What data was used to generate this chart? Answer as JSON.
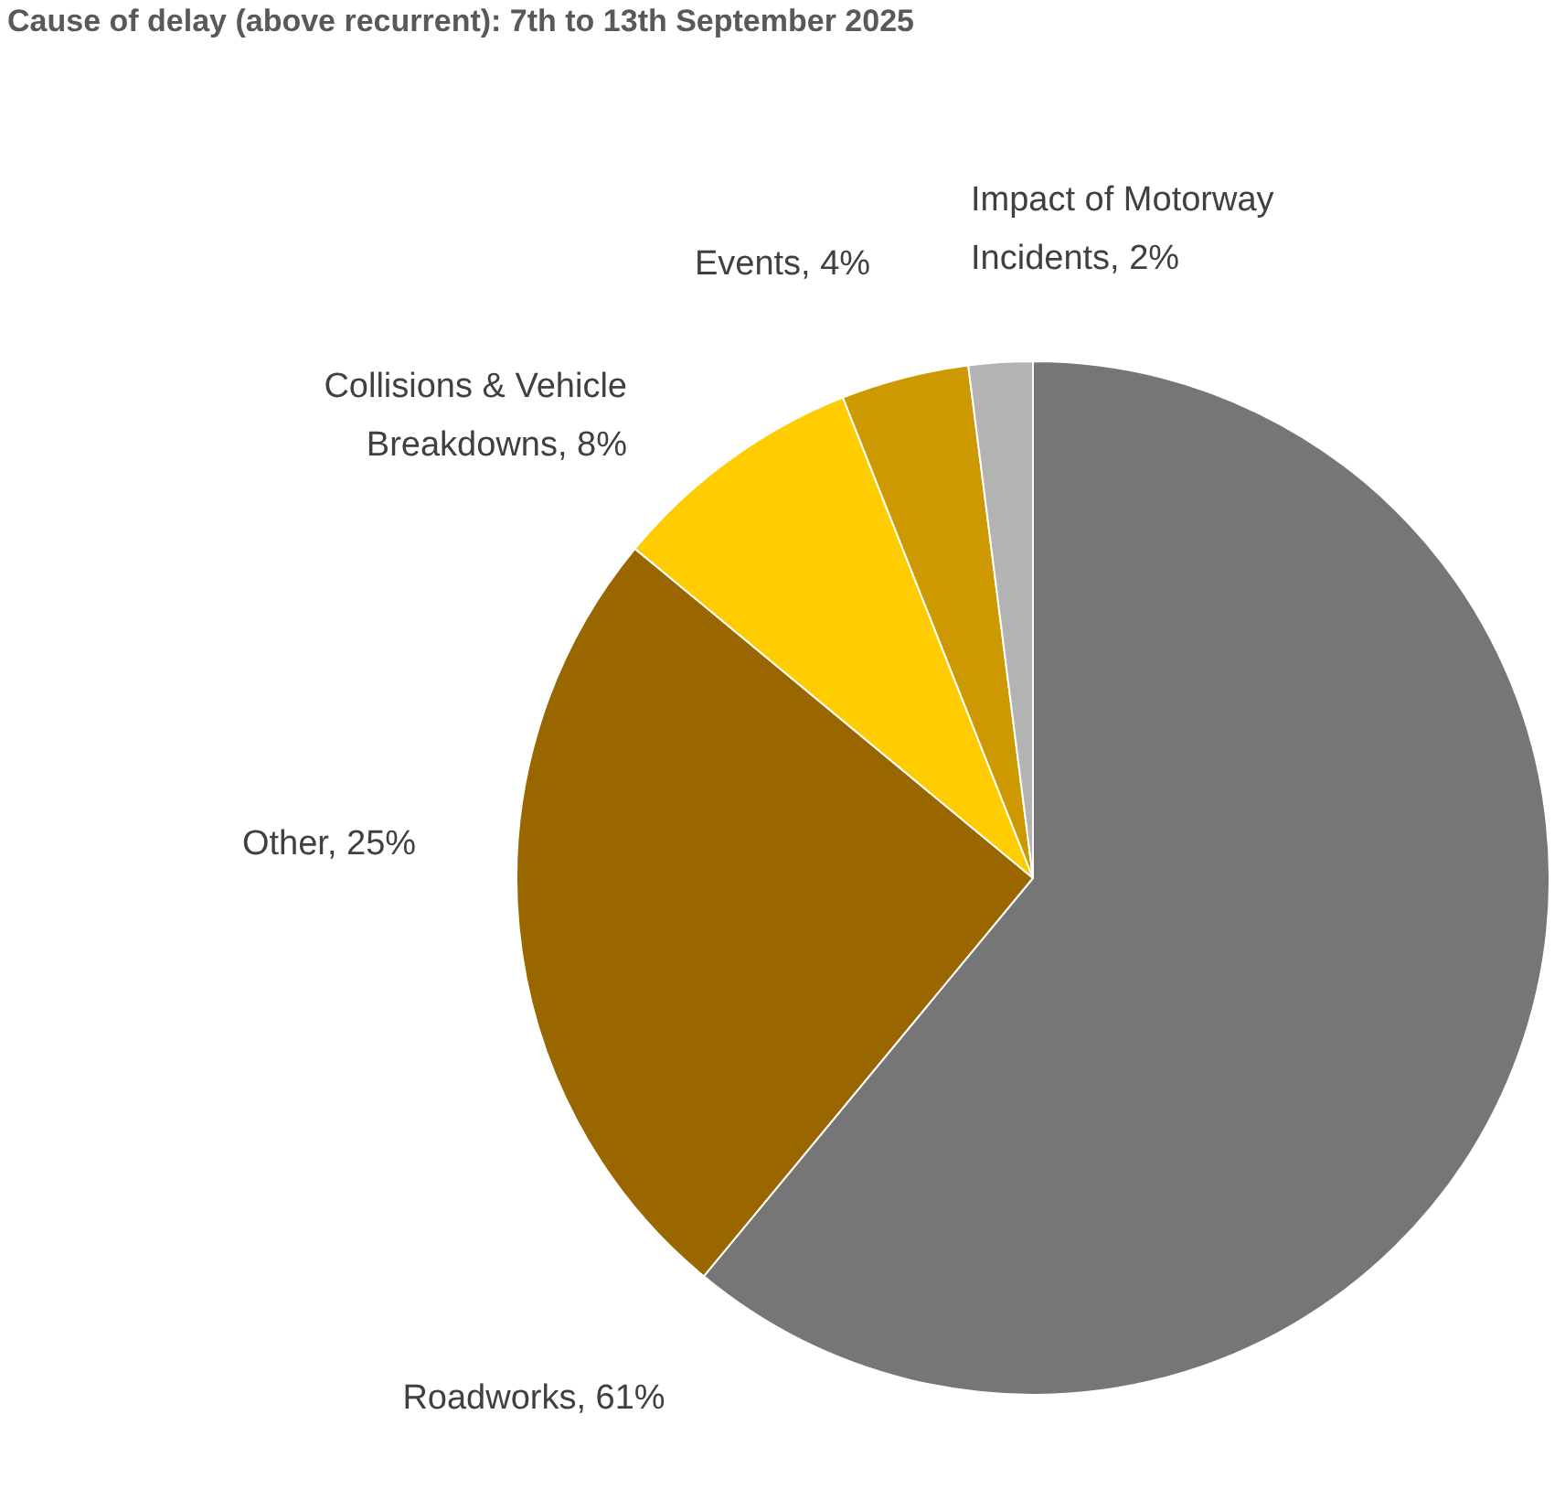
{
  "chart_data": {
    "type": "pie",
    "title": "Cause of delay (above recurrent): 7th to 13th September 2025",
    "categories": [
      "Roadworks",
      "Other",
      "Collisions & Vehicle Breakdowns",
      "Events",
      "Impact of Motorway Incidents"
    ],
    "values": [
      61,
      25,
      8,
      4,
      2
    ],
    "value_labels": [
      "61%",
      "25%",
      "8%",
      "4%",
      "2%"
    ],
    "colors": [
      "#767676",
      "#996600",
      "#ffcc00",
      "#cc9900",
      "#b3b3b3"
    ],
    "legend": false
  }
}
